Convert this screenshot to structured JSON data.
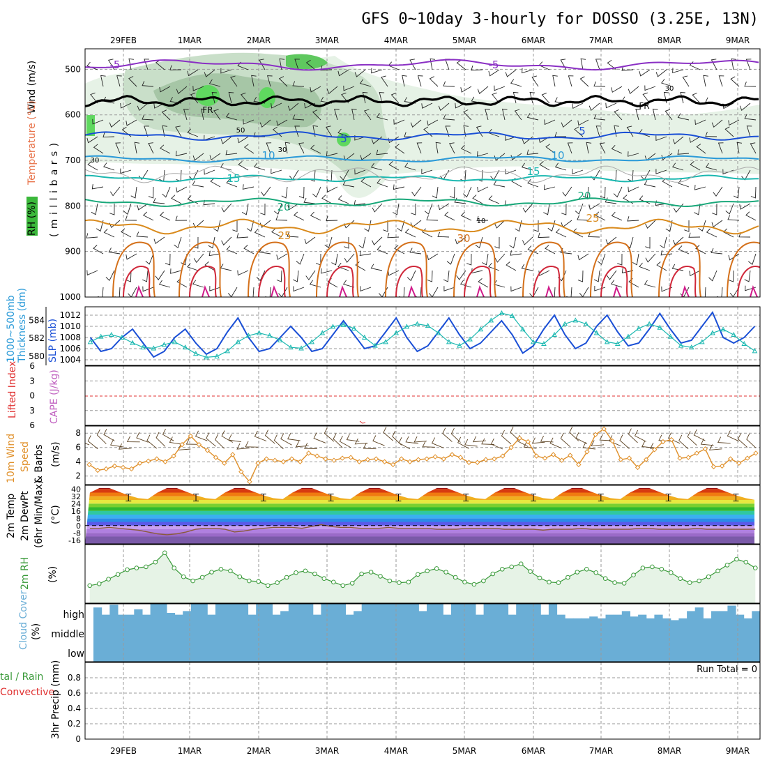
{
  "title": "GFS 0~10day 3-hourly for DOSSO (3.25E, 13N)",
  "dates": [
    "29FEB",
    "1MAR",
    "2MAR",
    "3MAR",
    "4MAR",
    "5MAR",
    "6MAR",
    "7MAR",
    "8MAR",
    "9MAR"
  ],
  "colors": {
    "purple": "#8a2fc4",
    "black": "#000000",
    "blue": "#1a4fd6",
    "lightblue": "#2a9ad8",
    "teal": "#1ab8b0",
    "green": "#19a87a",
    "orange": "#d98a1c",
    "darkorange": "#d4701a",
    "red": "#d0283a",
    "magenta": "#d01a8a",
    "rh_green": "#3bb83b",
    "cloud": "#6aaed6",
    "rh2m": "#3a9a3a",
    "wind10": "#e0902a",
    "lifted": "#e03030",
    "cape": "#c060c0"
  },
  "labels": {
    "upper_rh": "RH (%)",
    "upper_temp": "Temperature (°C)",
    "upper_wind": "Wind (m/s)",
    "upper_units": "( m i l l i b a r s )",
    "thickness": "1000~500mb",
    "thickness2": "Thickness (dm)",
    "slp": "SLP (mb)",
    "lifted": "Lifted Index",
    "cape": "CAPE (J/kg)",
    "wind10_1": "10m Wind",
    "wind10_2": "Speed",
    "wind10_3": "& Barbs",
    "wind10_units": "(m/s)",
    "t2m_1": "2m Temp",
    "t2m_2": "2m DewPt",
    "t2m_3": "(6hr Min/Max)",
    "t2m_units": "(°C)",
    "rh2m": "2m RH",
    "rh2m_units": "(%)",
    "cloud": "Cloud Cover",
    "cloud_units": "(%)",
    "cloud_high": "high",
    "cloud_middle": "middle",
    "cloud_low": "low",
    "precip_1": "tal / Rain",
    "precip_2": "Convective",
    "precip_3": "3hr Precip (mm)",
    "run_total": "Run Total = 0"
  },
  "chart_data": [
    {
      "type": "contour",
      "panel": "upper-air",
      "yticks": [
        500,
        600,
        700,
        800,
        900,
        1000
      ],
      "ylim": [
        455,
        1000
      ],
      "temperature_isotherms_c": [
        -5,
        5,
        10,
        15,
        20,
        25,
        30
      ],
      "freezing_level_label": "FR",
      "rh_labels": [
        30,
        50,
        10
      ]
    },
    {
      "type": "line",
      "panel": "thickness-slp",
      "yticks_thickness_dm": [
        580,
        582,
        584
      ],
      "yticks_slp_mb": [
        1004,
        1006,
        1008,
        1010,
        1012
      ],
      "series": [
        {
          "name": "SLP (mb)",
          "values": [
            1008,
            1005.5,
            1006,
            1008,
            1009.5,
            1007,
            1004.5,
            1005.5,
            1008,
            1009.5,
            1007,
            1005,
            1006,
            1009,
            1011.5,
            1008,
            1005.5,
            1006,
            1008,
            1010,
            1008,
            1005.5,
            1006,
            1008.5,
            1011,
            1008.5,
            1006,
            1006.5,
            1009,
            1011.5,
            1008,
            1005.5,
            1006.5,
            1009,
            1011.5,
            1008.5,
            1006,
            1007,
            1009,
            1011,
            1008.5,
            1005.2,
            1006.5,
            1009.5,
            1012,
            1008.5,
            1006,
            1007,
            1010,
            1012,
            1009,
            1006.5,
            1007,
            1009.5,
            1012.3,
            1009.5,
            1007,
            1007.5,
            1010,
            1012.5,
            1008,
            1007,
            1008,
            1010
          ]
        },
        {
          "name": "Thickness (dm)",
          "values": [
            581.6,
            582.2,
            582.4,
            582.1,
            581.5,
            581.0,
            580.9,
            581.3,
            581.6,
            581.0,
            580.3,
            579.9,
            580.0,
            580.6,
            581.6,
            582.3,
            582.6,
            582.3,
            581.8,
            581.0,
            580.9,
            581.6,
            582.6,
            583.3,
            583.5,
            583.1,
            582.1,
            581.2,
            581.6,
            582.6,
            583.3,
            583.6,
            583.4,
            582.6,
            581.6,
            581.2,
            581.9,
            583.0,
            584.0,
            584.8,
            584.5,
            583.0,
            581.6,
            581.4,
            582.4,
            583.6,
            584.0,
            583.6,
            582.6,
            581.6,
            581.4,
            582.2,
            583.1,
            583.6,
            583.2,
            582.2,
            581.2,
            581.0,
            581.6,
            582.6,
            583.0,
            582.4,
            581.4,
            580.6
          ]
        }
      ]
    },
    {
      "type": "line",
      "panel": "lifted-cape",
      "yticks": [
        -6,
        -3,
        0,
        3,
        6
      ],
      "ylim": [
        -6,
        6
      ],
      "series": [
        {
          "name": "Lifted Index",
          "values": []
        },
        {
          "name": "CAPE (J/kg)",
          "values": []
        }
      ]
    },
    {
      "type": "line",
      "panel": "10m-wind",
      "yticks": [
        2,
        4,
        6,
        8
      ],
      "ylim": [
        0.8,
        9
      ],
      "series": [
        {
          "name": "Speed",
          "values": [
            3.6,
            2.8,
            3.0,
            3.4,
            3.2,
            3.0,
            3.8,
            4.1,
            4.4,
            4.0,
            4.8,
            6.4,
            7.6,
            6.4,
            5.6,
            4.6,
            3.8,
            5.0,
            2.6,
            1.2,
            3.8,
            4.4,
            4.2,
            4.0,
            4.4,
            4.0,
            5.2,
            4.8,
            4.4,
            4.2,
            4.5,
            4.6,
            4.0,
            4.3,
            4.4,
            4.0,
            3.6,
            4.4,
            4.0,
            4.3,
            4.4,
            4.7,
            4.4,
            5.0,
            4.6,
            3.9,
            3.9,
            4.3,
            4.4,
            4.8,
            6.0,
            7.3,
            6.8,
            4.8,
            4.5,
            5.0,
            4.2,
            4.9,
            3.6,
            5.4,
            7.8,
            8.6,
            6.9,
            4.3,
            4.5,
            3.2,
            4.3,
            5.7,
            6.8,
            7.1,
            4.5,
            4.6,
            5.2,
            5.8,
            3.3,
            3.4,
            4.4,
            3.8,
            4.5,
            5.2
          ]
        }
      ]
    },
    {
      "type": "area",
      "panel": "2m-temp",
      "yticks": [
        40,
        32,
        24,
        16,
        8,
        0,
        -8,
        -16
      ],
      "ylim": [
        -20,
        44
      ],
      "series": [
        {
          "name": "2m Temp",
          "values": [
            36,
            41,
            41,
            37,
            33,
            30,
            29,
            36,
            41,
            41,
            37,
            33,
            30,
            29,
            36,
            41,
            41,
            37,
            33,
            30,
            29,
            36,
            41,
            41,
            37,
            33,
            30,
            29,
            36,
            41,
            41,
            37,
            33,
            30,
            29,
            36,
            41,
            41,
            37,
            33,
            30,
            29,
            36,
            41,
            41,
            37,
            33,
            30,
            29,
            36,
            41,
            41,
            37,
            33,
            30,
            29,
            36,
            41,
            41,
            37,
            33,
            30,
            29,
            36,
            41,
            41,
            37,
            33,
            30,
            28
          ]
        },
        {
          "name": "2m DewPt",
          "values": [
            -3,
            -3,
            -2,
            -3,
            -4,
            -5,
            -7,
            -9,
            -10,
            -9,
            -7,
            -4,
            -3,
            -3,
            -4,
            -7,
            -6,
            -4,
            -3,
            -2,
            -2,
            -2,
            -3,
            -1,
            1,
            -1,
            -2,
            -2,
            -3,
            -3,
            -3,
            -2,
            -3,
            -3,
            -3,
            -3,
            -4,
            -4,
            -4,
            -3,
            -3,
            -3,
            -3,
            -4,
            -4,
            -4,
            -4,
            -5,
            -4,
            -4,
            -4,
            -3,
            -4,
            -4,
            -4,
            -4,
            -4,
            -3,
            -3,
            -4,
            -4,
            -4,
            -4,
            -3,
            -4,
            -4,
            -4,
            -4,
            -4,
            -4
          ]
        }
      ]
    },
    {
      "type": "line",
      "panel": "2m-rh",
      "ylim": [
        0,
        100
      ],
      "series": [
        {
          "name": "2m RH",
          "values": [
            30,
            33,
            41,
            49,
            57,
            60,
            62,
            70,
            86,
            60,
            45,
            38,
            44,
            53,
            58,
            55,
            45,
            38,
            37,
            30,
            35,
            44,
            52,
            55,
            50,
            42,
            36,
            30,
            34,
            50,
            53,
            46,
            38,
            35,
            36,
            49,
            55,
            59,
            53,
            44,
            36,
            32,
            38,
            50,
            58,
            62,
            67,
            54,
            43,
            36,
            35,
            44,
            53,
            58,
            52,
            42,
            35,
            34,
            48,
            60,
            62,
            58,
            52,
            42,
            35,
            38,
            45,
            55,
            65,
            75,
            70,
            60
          ]
        }
      ]
    },
    {
      "type": "bar",
      "panel": "cloud-cover",
      "levels": [
        "high",
        "middle",
        "low"
      ],
      "series": [
        {
          "name": "high",
          "values": [
            80,
            40,
            95,
            40,
            40,
            70,
            40,
            100,
            100,
            50,
            40,
            60,
            100,
            100,
            40,
            100,
            100,
            100,
            100,
            40,
            100,
            100,
            40,
            60,
            100,
            100,
            100,
            40,
            100,
            100,
            100,
            40,
            60,
            100,
            100,
            100,
            100,
            100,
            100,
            100,
            60,
            100,
            100,
            40,
            100,
            100,
            100,
            40,
            100,
            100,
            100,
            40,
            100,
            100,
            100,
            40,
            100,
            40,
            20,
            20,
            20,
            30,
            20,
            40,
            40,
            60,
            30,
            40,
            20,
            40,
            20,
            10,
            20,
            60,
            80,
            20,
            60,
            60,
            90,
            40,
            20,
            60
          ]
        }
      ]
    },
    {
      "type": "bar",
      "panel": "3hr-precip",
      "yticks": [
        0,
        0.2,
        0.4,
        0.6,
        0.8
      ],
      "ylim": [
        0,
        1.0
      ],
      "series": [
        {
          "name": "Total / Rain",
          "values": []
        },
        {
          "name": "Convective",
          "values": []
        }
      ]
    }
  ]
}
